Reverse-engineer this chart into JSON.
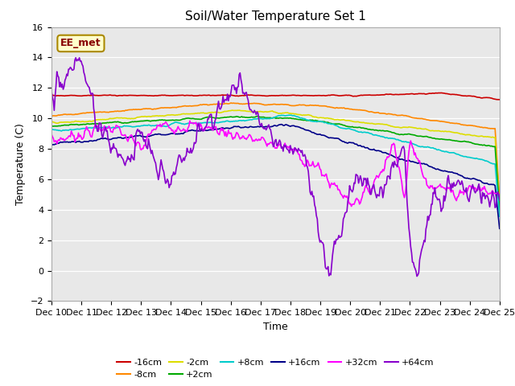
{
  "title": "Soil/Water Temperature Set 1",
  "xlabel": "Time",
  "ylabel": "Temperature (C)",
  "xlim": [
    0,
    15
  ],
  "ylim": [
    -2,
    16
  ],
  "yticks": [
    -2,
    0,
    2,
    4,
    6,
    8,
    10,
    12,
    14,
    16
  ],
  "xtick_labels": [
    "Dec 10",
    "Dec 11",
    "Dec 12",
    "Dec 13",
    "Dec 14",
    "Dec 15",
    "Dec 16",
    "Dec 17",
    "Dec 18",
    "Dec 19",
    "Dec 20",
    "Dec 21",
    "Dec 22",
    "Dec 23",
    "Dec 24",
    "Dec 25"
  ],
  "annotation_text": "EE_met",
  "annotation_bg": "#ffffcc",
  "annotation_border": "#aa8800",
  "annotation_text_color": "#880000",
  "fig_bg": "#ffffff",
  "plot_bg": "#e8e8e8",
  "series": [
    {
      "label": "-16cm",
      "color": "#cc0000",
      "lw": 1.2
    },
    {
      "label": "-8cm",
      "color": "#ff8800",
      "lw": 1.2
    },
    {
      "label": "-2cm",
      "color": "#dddd00",
      "lw": 1.2
    },
    {
      "label": "+2cm",
      "color": "#00aa00",
      "lw": 1.2
    },
    {
      "label": "+8cm",
      "color": "#00cccc",
      "lw": 1.2
    },
    {
      "label": "+16cm",
      "color": "#000088",
      "lw": 1.2
    },
    {
      "label": "+32cm",
      "color": "#ff00ff",
      "lw": 1.2
    },
    {
      "label": "+64cm",
      "color": "#8800cc",
      "lw": 1.2
    }
  ],
  "n_points": 500
}
